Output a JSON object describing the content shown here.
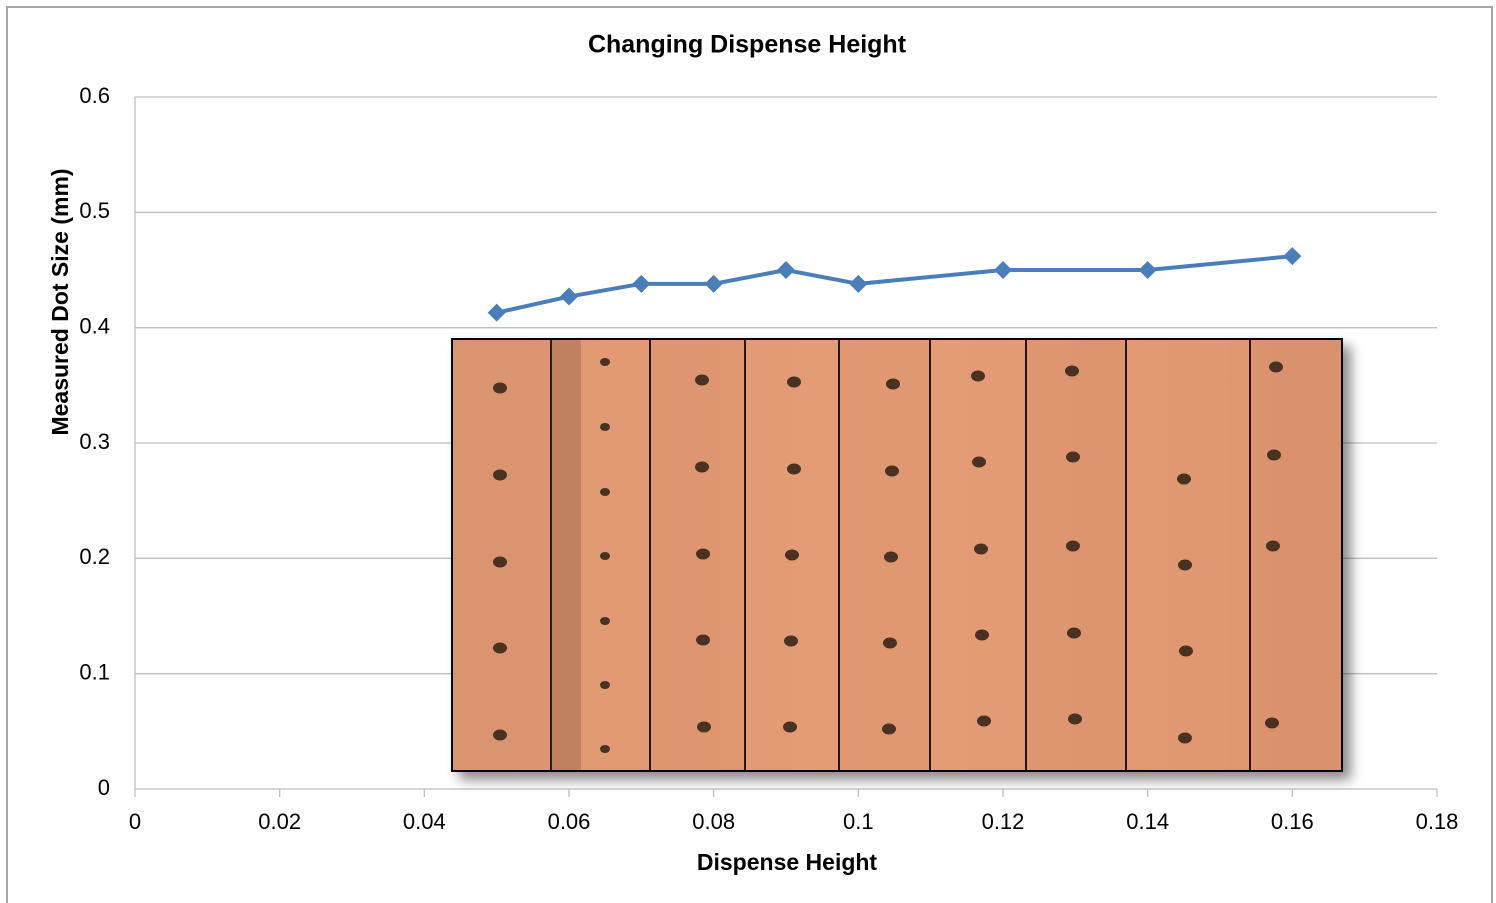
{
  "chart_data": {
    "type": "line",
    "title": "Changing  Dispense Height",
    "x_label": "Dispense Height",
    "y_label": "Measured Dot Size (mm)",
    "x": [
      0.05,
      0.06,
      0.07,
      0.08,
      0.09,
      0.1,
      0.12,
      0.14,
      0.16
    ],
    "series": [
      {
        "name": "Measured Dot Size",
        "color": "#4a7ebb",
        "values": [
          0.413,
          0.427,
          0.438,
          0.438,
          0.45,
          0.438,
          0.45,
          0.45,
          0.462
        ]
      }
    ],
    "xlim": [
      0,
      0.18
    ],
    "xticks": [
      0,
      0.02,
      0.04,
      0.06,
      0.08,
      0.1,
      0.12,
      0.14,
      0.16,
      0.18
    ],
    "ylim": [
      0,
      0.6
    ],
    "yticks": [
      0,
      0.1,
      0.2,
      0.3,
      0.4,
      0.5,
      0.6
    ],
    "grid": true
  }
}
